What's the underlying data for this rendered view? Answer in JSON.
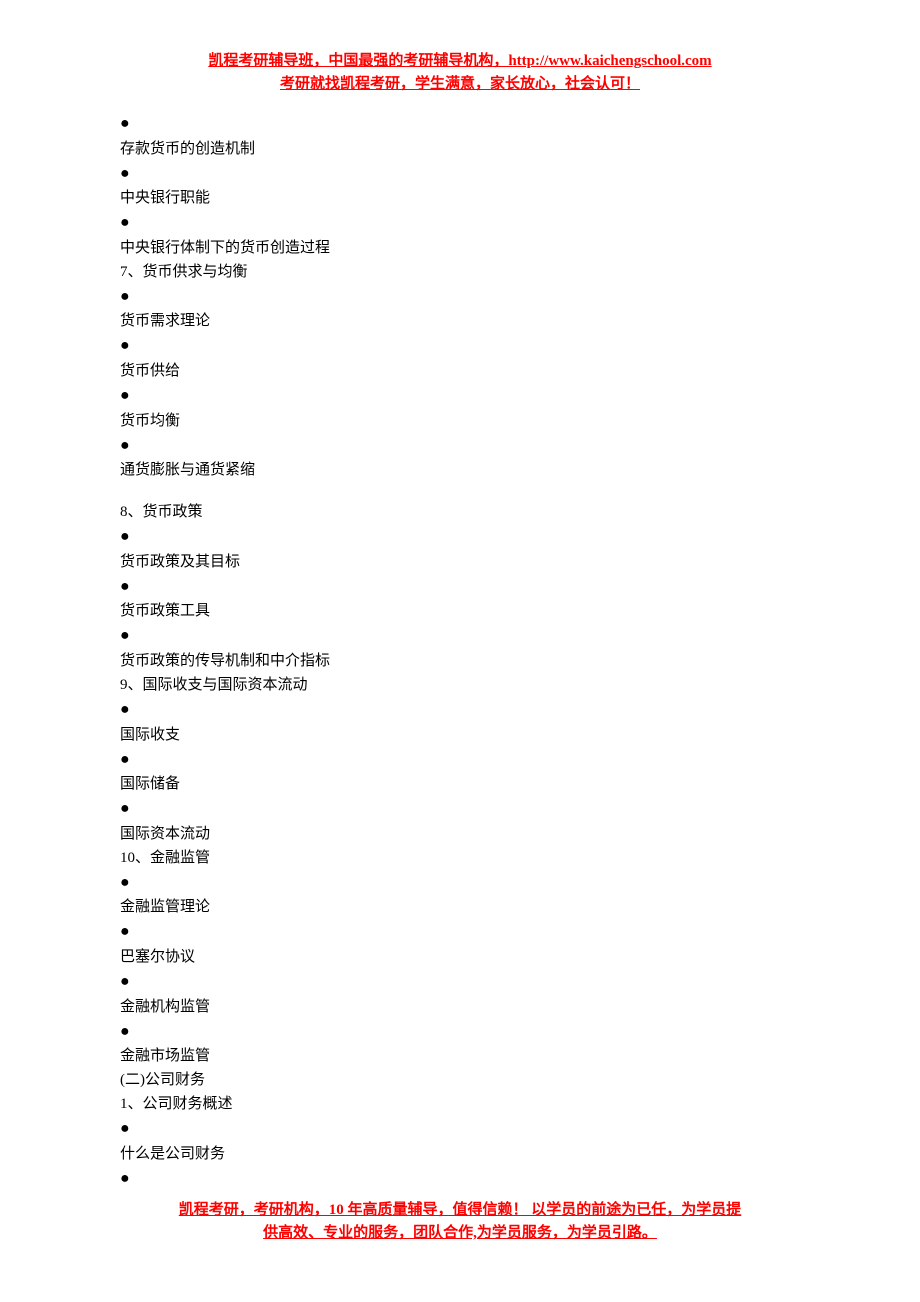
{
  "header": {
    "line1": "凯程考研辅导班，中国最强的考研辅导机构，http://www.kaichengschool.com",
    "line2": "考研就找凯程考研，学生满意，家长放心，社会认可！"
  },
  "content": {
    "items": [
      {
        "type": "bullet"
      },
      {
        "type": "text",
        "value": "存款货币的创造机制"
      },
      {
        "type": "bullet"
      },
      {
        "type": "text",
        "value": "中央银行职能"
      },
      {
        "type": "bullet"
      },
      {
        "type": "text",
        "value": "中央银行体制下的货币创造过程"
      },
      {
        "type": "text",
        "value": "7、货币供求与均衡"
      },
      {
        "type": "bullet"
      },
      {
        "type": "text",
        "value": "货币需求理论"
      },
      {
        "type": "bullet"
      },
      {
        "type": "text",
        "value": "货币供给"
      },
      {
        "type": "bullet"
      },
      {
        "type": "text",
        "value": "货币均衡"
      },
      {
        "type": "bullet"
      },
      {
        "type": "text",
        "value": "通货膨胀与通货紧缩"
      },
      {
        "type": "gap"
      },
      {
        "type": "text",
        "value": "8、货币政策"
      },
      {
        "type": "bullet"
      },
      {
        "type": "text",
        "value": "货币政策及其目标"
      },
      {
        "type": "bullet"
      },
      {
        "type": "text",
        "value": "货币政策工具"
      },
      {
        "type": "bullet"
      },
      {
        "type": "text",
        "value": "货币政策的传导机制和中介指标"
      },
      {
        "type": "text",
        "value": "9、国际收支与国际资本流动"
      },
      {
        "type": "bullet"
      },
      {
        "type": "text",
        "value": "国际收支"
      },
      {
        "type": "bullet"
      },
      {
        "type": "text",
        "value": "国际储备"
      },
      {
        "type": "bullet"
      },
      {
        "type": "text",
        "value": "国际资本流动"
      },
      {
        "type": "text",
        "value": "10、金融监管"
      },
      {
        "type": "bullet"
      },
      {
        "type": "text",
        "value": "金融监管理论"
      },
      {
        "type": "bullet"
      },
      {
        "type": "text",
        "value": "巴塞尔协议"
      },
      {
        "type": "bullet"
      },
      {
        "type": "text",
        "value": "金融机构监管"
      },
      {
        "type": "bullet"
      },
      {
        "type": "text",
        "value": "金融市场监管"
      },
      {
        "type": "text",
        "value": "(二)公司财务"
      },
      {
        "type": "text",
        "value": "1、公司财务概述"
      },
      {
        "type": "bullet"
      },
      {
        "type": "text",
        "value": "什么是公司财务"
      },
      {
        "type": "bullet"
      }
    ]
  },
  "footer": {
    "line1": "凯程考研，考研机构，10 年高质量辅导，值得信赖！ 以学员的前途为已任，为学员提",
    "line2": "供高效、专业的服务，团队合作,为学员服务，为学员引路。"
  },
  "colors": {
    "header_text": "#ff0000",
    "body_text": "#000000",
    "background": "#ffffff"
  }
}
